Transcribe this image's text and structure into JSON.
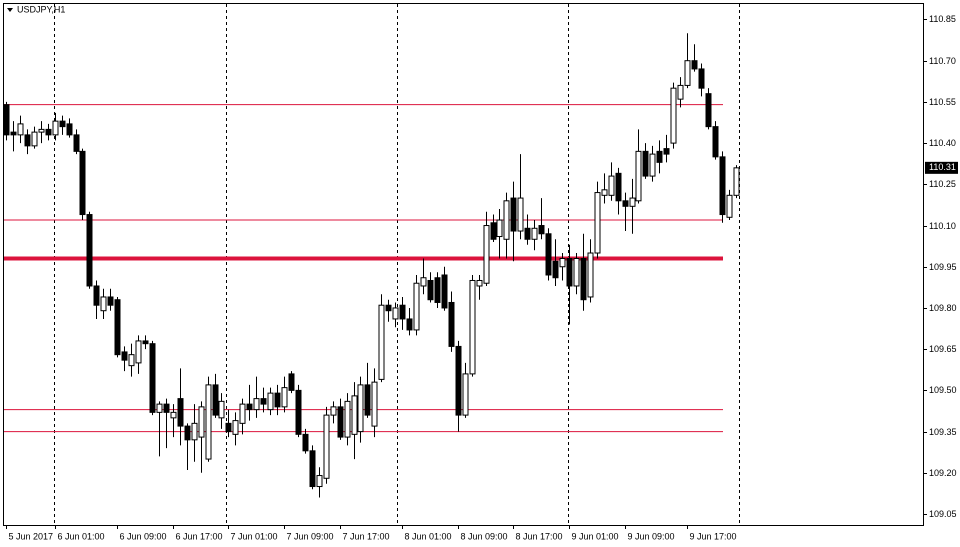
{
  "chart_data": {
    "type": "candlestick",
    "title": "USDJPY,H1",
    "categories": [
      "5 Jun 2017",
      null,
      null,
      null,
      null,
      null,
      null,
      "6 Jun 01:00",
      null,
      null,
      null,
      null,
      null,
      null,
      null,
      null,
      "6 Jun 09:00",
      null,
      null,
      null,
      null,
      null,
      null,
      null,
      "6 Jun 17:00",
      null,
      null,
      null,
      null,
      null,
      null,
      null,
      "7 Jun 01:00",
      null,
      null,
      null,
      null,
      null,
      null,
      null,
      "7 Jun 09:00",
      null,
      null,
      null,
      null,
      null,
      null,
      null,
      "7 Jun 17:00",
      null,
      null,
      null,
      null,
      null,
      null,
      null,
      null,
      "8 Jun 01:00",
      null,
      null,
      null,
      null,
      null,
      null,
      null,
      "8 Jun 09:00",
      null,
      null,
      null,
      null,
      null,
      null,
      null,
      "8 Jun 17:00",
      null,
      null,
      null,
      null,
      null,
      null,
      null,
      "9 Jun 01:00",
      null,
      null,
      null,
      null,
      null,
      null,
      null,
      "9 Jun 09:00",
      null,
      null,
      null,
      null,
      null,
      null,
      null,
      null,
      "9 Jun 17:00",
      null,
      null,
      null,
      null,
      null,
      null,
      null
    ],
    "open": [
      110.54,
      110.44,
      110.43,
      110.43,
      110.39,
      110.44,
      110.45,
      110.43,
      110.48,
      110.47,
      110.43,
      110.37,
      110.14,
      109.88,
      109.79,
      109.84,
      109.83,
      109.64,
      109.59,
      109.6,
      109.68,
      109.67,
      109.42,
      109.45,
      109.4,
      109.47,
      109.37,
      109.32,
      109.33,
      109.25,
      109.52,
      109.4,
      109.38,
      109.34,
      109.38,
      109.45,
      109.43,
      109.47,
      109.43,
      109.49,
      109.44,
      109.56,
      109.5,
      109.34,
      109.28,
      109.15,
      109.18,
      109.41,
      109.44,
      109.33,
      109.34,
      109.35,
      109.52,
      109.37,
      109.54,
      109.81,
      109.76,
      109.81,
      109.76,
      109.72,
      109.88,
      109.9,
      109.91,
      109.92,
      109.82,
      109.66,
      109.41,
      109.56,
      109.88,
      109.89,
      110.11,
      110.06,
      110.05,
      110.2,
      110.08,
      110.09,
      110.05,
      110.1,
      110.07,
      109.97,
      109.95,
      109.98,
      109.88,
      109.98,
      109.84,
      110.0,
      110.21,
      110.21,
      110.29,
      110.19,
      110.17,
      110.19,
      110.37,
      110.28,
      110.37,
      110.38,
      110.4,
      110.56,
      110.61,
      110.7,
      110.67,
      110.58,
      110.46,
      110.35,
      110.13,
      110.21
    ],
    "high": [
      110.55,
      110.48,
      110.5,
      110.45,
      110.46,
      110.48,
      110.47,
      110.51,
      110.5,
      110.49,
      110.45,
      110.38,
      110.15,
      109.9,
      109.87,
      109.87,
      109.84,
      109.66,
      109.67,
      109.7,
      109.7,
      109.68,
      109.46,
      109.47,
      109.45,
      109.58,
      109.38,
      109.45,
      109.46,
      109.55,
      109.56,
      109.49,
      109.43,
      109.42,
      109.47,
      109.52,
      109.55,
      109.51,
      109.51,
      109.52,
      109.55,
      109.57,
      109.52,
      109.36,
      109.3,
      109.22,
      109.44,
      109.46,
      109.47,
      109.49,
      109.53,
      109.55,
      109.6,
      109.58,
      109.85,
      109.83,
      109.82,
      109.84,
      109.8,
      109.92,
      109.98,
      109.93,
      109.93,
      109.95,
      109.86,
      109.68,
      109.6,
      109.92,
      109.92,
      110.15,
      110.14,
      110.16,
      110.22,
      110.26,
      110.36,
      110.14,
      110.12,
      110.2,
      110.09,
      110.05,
      110.0,
      110.03,
      110.0,
      110.07,
      110.05,
      110.26,
      110.29,
      110.33,
      110.31,
      110.22,
      110.27,
      110.45,
      110.4,
      110.39,
      110.41,
      110.43,
      110.62,
      110.64,
      110.8,
      110.76,
      110.69,
      110.6,
      110.48,
      110.37,
      110.23,
      110.32
    ],
    "low": [
      110.41,
      110.37,
      110.4,
      110.36,
      110.38,
      110.4,
      110.41,
      110.41,
      110.43,
      110.42,
      110.36,
      110.12,
      109.87,
      109.76,
      109.76,
      109.79,
      109.62,
      109.57,
      109.55,
      109.56,
      109.65,
      109.41,
      109.26,
      109.29,
      109.33,
      109.3,
      109.21,
      109.24,
      109.2,
      109.24,
      109.4,
      109.36,
      109.33,
      109.3,
      109.34,
      109.39,
      109.4,
      109.42,
      109.41,
      109.41,
      109.42,
      109.49,
      109.33,
      109.27,
      109.14,
      109.11,
      109.16,
      109.38,
      109.32,
      109.3,
      109.25,
      109.31,
      109.4,
      109.33,
      109.53,
      109.75,
      109.73,
      109.72,
      109.7,
      109.7,
      109.85,
      109.82,
      109.8,
      109.79,
      109.64,
      109.35,
      109.4,
      109.55,
      109.83,
      109.88,
      110.04,
      109.98,
      109.98,
      109.97,
      110.05,
      110.03,
      110.01,
      110.05,
      109.9,
      109.88,
      109.9,
      109.74,
      109.85,
      109.79,
      109.82,
      109.98,
      110.18,
      110.19,
      110.14,
      110.08,
      110.07,
      110.18,
      110.27,
      110.26,
      110.29,
      110.33,
      110.38,
      110.53,
      110.6,
      110.66,
      110.57,
      110.45,
      110.34,
      110.11,
      110.12,
      110.2
    ],
    "close": [
      110.43,
      110.43,
      110.47,
      110.39,
      110.44,
      110.45,
      110.43,
      110.48,
      110.46,
      110.43,
      110.37,
      110.14,
      109.88,
      109.81,
      109.84,
      109.81,
      109.63,
      109.61,
      109.63,
      109.68,
      109.67,
      109.42,
      109.45,
      109.42,
      109.42,
      109.37,
      109.32,
      109.38,
      109.44,
      109.52,
      109.41,
      109.46,
      109.35,
      109.39,
      109.45,
      109.43,
      109.47,
      109.45,
      109.49,
      109.44,
      109.51,
      109.5,
      109.34,
      109.28,
      109.15,
      109.19,
      109.41,
      109.44,
      109.33,
      109.46,
      109.48,
      109.52,
      109.41,
      109.53,
      109.81,
      109.79,
      109.8,
      109.76,
      109.72,
      109.89,
      109.91,
      109.83,
      109.82,
      109.8,
      109.66,
      109.41,
      109.56,
      109.9,
      109.9,
      110.1,
      110.05,
      110.12,
      110.19,
      110.08,
      110.2,
      110.05,
      110.09,
      110.07,
      109.92,
      109.91,
      109.98,
      109.88,
      109.98,
      109.83,
      110.0,
      110.22,
      110.23,
      110.28,
      110.19,
      110.17,
      110.2,
      110.37,
      110.28,
      110.36,
      110.33,
      110.36,
      110.6,
      110.61,
      110.7,
      110.67,
      110.6,
      110.46,
      110.35,
      110.14,
      110.21,
      110.31
    ],
    "bull_color": "#ffffff",
    "bear_color": "#000000",
    "levels": [
      {
        "value": 110.54,
        "line_width": 1
      },
      {
        "value": 110.12,
        "line_width": 1
      },
      {
        "value": 109.98,
        "line_width": 4
      },
      {
        "value": 109.43,
        "line_width": 1
      },
      {
        "value": 109.35,
        "line_width": 1
      }
    ],
    "levels_color": "#dc143c",
    "last_price": 110.31,
    "ylim": [
      109.01,
      110.91
    ],
    "yticks": [
      110.85,
      {
        "value": 110.7,
        "label": "110.70"
      },
      110.55,
      {
        "value": 110.4,
        "label": "110.40"
      },
      110.25,
      {
        "value": 110.1,
        "label": "110.10"
      },
      109.95,
      {
        "value": 109.8,
        "label": "109.80"
      },
      109.65,
      {
        "value": 109.5,
        "label": "109.50"
      },
      109.35,
      {
        "value": 109.2,
        "label": "109.20"
      },
      109.05
    ]
  }
}
